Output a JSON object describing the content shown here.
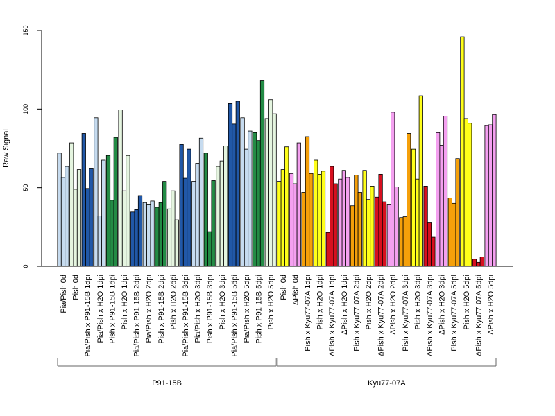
{
  "chart_data": {
    "type": "bar",
    "ylabel": "Raw Signal",
    "ylim": [
      0,
      150
    ],
    "yticks": [
      "0",
      "50",
      "100",
      "150"
    ],
    "grid": false,
    "legend": "none",
    "categories": [
      {
        "label": "Pia/Pish 0d",
        "color": "#c6dbef",
        "values": [
          72,
          56.5,
          63.5
        ]
      },
      {
        "label": "Pish 0d",
        "color": "#e5f5e0",
        "values": [
          78.5,
          49,
          61.5
        ]
      },
      {
        "label": "Pia/Pish x P91-15B 1dpi",
        "color": "#2158a8",
        "values": [
          84.5,
          49.5,
          62
        ]
      },
      {
        "label": "Pia/Pish x H2O 1dpi",
        "color": "#c6dbef",
        "values": [
          94.5,
          32,
          67.5
        ]
      },
      {
        "label": "Pish x P91-15B 1dpi",
        "color": "#238b45",
        "values": [
          70.5,
          42,
          82
        ]
      },
      {
        "label": "Pish x H2O 1dpi",
        "color": "#e5f5e0",
        "values": [
          99.5,
          48,
          70.5
        ]
      },
      {
        "label": "Pia/Pish x P91-15B 2dpi",
        "color": "#2158a8",
        "values": [
          34.5,
          36,
          45
        ]
      },
      {
        "label": "Pia/Pish x H2O 2dpi",
        "color": "#c6dbef",
        "values": [
          40.5,
          39.5,
          41.5
        ]
      },
      {
        "label": "Pish x P91-15B 2dpi",
        "color": "#238b45",
        "values": [
          37.5,
          40.5,
          54
        ]
      },
      {
        "label": "Pish x H2O 2dpi",
        "color": "#e5f5e0",
        "values": [
          36.5,
          48,
          29.5
        ]
      },
      {
        "label": "Pia/Pish x P91-15B 3dpi",
        "color": "#2158a8",
        "values": [
          77.5,
          56,
          74.5
        ]
      },
      {
        "label": "Pia/Pish x H2O 3dpi",
        "color": "#c6dbef",
        "values": [
          54,
          65.5,
          81.5
        ]
      },
      {
        "label": "Pish x P91-15B 3dpi",
        "color": "#238b45",
        "values": [
          72,
          22,
          54.5
        ]
      },
      {
        "label": "Pish x H2O 3dpi",
        "color": "#e5f5e0",
        "values": [
          63.5,
          67,
          76.5
        ]
      },
      {
        "label": "Pia/Pish x P91-15B 5dpi",
        "color": "#2158a8",
        "values": [
          103.5,
          90.5,
          105
        ]
      },
      {
        "label": "Pia/Pish x H2O 5dpi",
        "color": "#c6dbef",
        "values": [
          94.5,
          74.5,
          86
        ]
      },
      {
        "label": "Pish x P91-15B 5dpi",
        "color": "#238b45",
        "values": [
          85,
          80,
          118
        ]
      },
      {
        "label": "Pish x H2O 5dpi",
        "color": "#e5f5e0",
        "values": [
          94,
          106,
          97
        ]
      },
      {
        "label": "Pish 0d",
        "color": "#ffff1a",
        "values": [
          54,
          61.5,
          76
        ]
      },
      {
        "label": "ΔPish 0d",
        "color": "#f4a0f0",
        "values": [
          59,
          52.5,
          78.5
        ]
      },
      {
        "label": "Pish x Kyu77-07A 1dpi",
        "color": "#f5a00a",
        "values": [
          47,
          82.5,
          59
        ]
      },
      {
        "label": "Pish x H2O 1dpi",
        "color": "#ffff1a",
        "values": [
          67.5,
          58.5,
          60.5
        ]
      },
      {
        "label": "ΔPish x Kyu77-07A 1dpi",
        "color": "#d7101f",
        "values": [
          21.5,
          63.5,
          52.5
        ]
      },
      {
        "label": "ΔPish x H2O 1dpi",
        "color": "#f4a0f0",
        "values": [
          55.5,
          61,
          56.5
        ]
      },
      {
        "label": "Pish x Kyu77-07A 2dpi",
        "color": "#f5a00a",
        "values": [
          38.5,
          58,
          47
        ]
      },
      {
        "label": "Pish x H2O 2dpi",
        "color": "#ffff1a",
        "values": [
          61,
          42.5,
          51
        ]
      },
      {
        "label": "ΔPish x Kyu77-07A 2dpi",
        "color": "#d7101f",
        "values": [
          44,
          58.5,
          41
        ]
      },
      {
        "label": "ΔPish x H2O 2dpi",
        "color": "#f4a0f0",
        "values": [
          39.5,
          98,
          50.5
        ]
      },
      {
        "label": "Pish x Kyu77-07A 3dpi",
        "color": "#f5a00a",
        "values": [
          31,
          31.5,
          84.5
        ]
      },
      {
        "label": "Pish x H2O 3dpi",
        "color": "#ffff1a",
        "values": [
          74.5,
          55.5,
          108.5
        ]
      },
      {
        "label": "ΔPish x Kyu77-07A 3dpi",
        "color": "#d7101f",
        "values": [
          51,
          28,
          18.5
        ]
      },
      {
        "label": "ΔPish x H2O 3dpi",
        "color": "#f4a0f0",
        "values": [
          85,
          77,
          95.5
        ]
      },
      {
        "label": "Pish x Kyu77-07A 5dpi",
        "color": "#f5a00a",
        "values": [
          43.5,
          40,
          68.5
        ]
      },
      {
        "label": "Pish x H2O 5dpi",
        "color": "#ffff1a",
        "values": [
          146,
          94,
          91
        ]
      },
      {
        "label": "ΔPish x Kyu77-07A 5dpi",
        "color": "#d7101f",
        "values": [
          4.5,
          2.5,
          6
        ]
      },
      {
        "label": "ΔPish x H2O 5dpi",
        "color": "#f4a0f0",
        "values": [
          89.5,
          90,
          96.5
        ]
      }
    ],
    "groups": [
      {
        "label": "P91-15B",
        "first": 0,
        "last": 17
      },
      {
        "label": "Kyu77-07A",
        "first": 18,
        "last": 35
      }
    ]
  }
}
